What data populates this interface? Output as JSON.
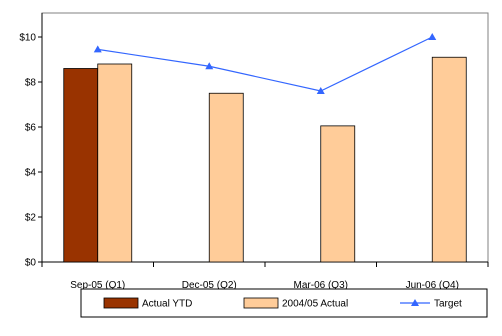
{
  "chart_data": {
    "type": "bar",
    "categories": [
      "Sep-05 (Q1)",
      "Dec-05 (Q2)",
      "Mar-06 (Q3)",
      "Jun-06 (Q4)"
    ],
    "series": [
      {
        "name": "Actual YTD",
        "kind": "bar",
        "color": "#993300",
        "values": [
          8.6,
          null,
          null,
          null
        ]
      },
      {
        "name": "2004/05 Actual",
        "kind": "bar",
        "color": "#FFCC99",
        "values": [
          8.8,
          7.5,
          6.05,
          9.1
        ]
      },
      {
        "name": "Target",
        "kind": "line",
        "color": "#3366FF",
        "marker": "triangle",
        "values": [
          9.45,
          8.7,
          7.6,
          10.0
        ]
      }
    ],
    "ylim": [
      0,
      10
    ],
    "yticks": [
      {
        "value": 0,
        "label": "$0"
      },
      {
        "value": 2,
        "label": "$2"
      },
      {
        "value": 4,
        "label": "$4"
      },
      {
        "value": 6,
        "label": "$6"
      },
      {
        "value": 8,
        "label": "$8"
      },
      {
        "value": 10,
        "label": "$10"
      }
    ],
    "grid": false,
    "legend_position": "bottom",
    "title": "",
    "xlabel": "",
    "ylabel": ""
  }
}
